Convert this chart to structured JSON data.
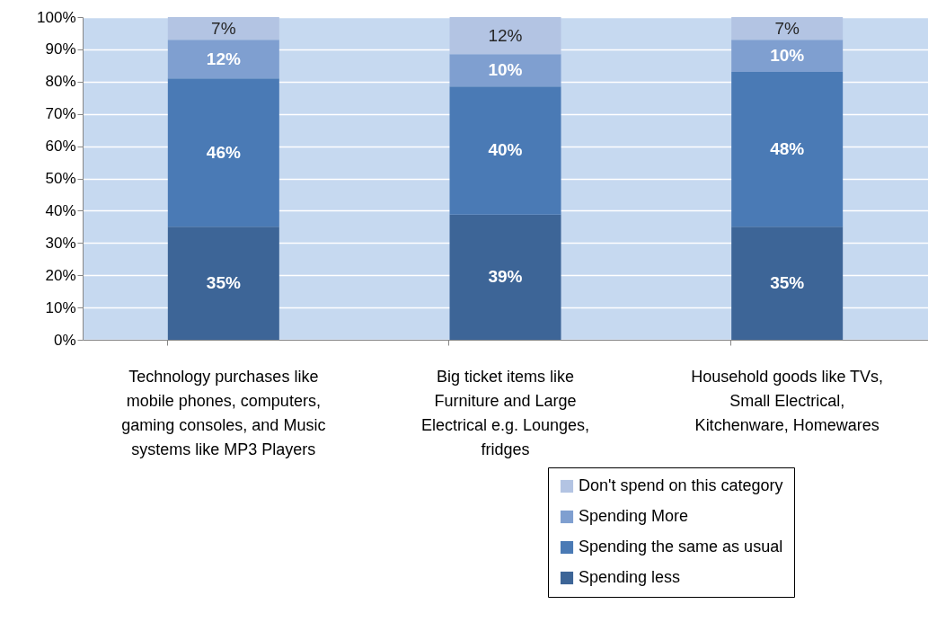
{
  "chart_data": {
    "type": "bar",
    "stacked": true,
    "categories": [
      "Technology purchases like mobile phones, computers, gaming consoles, and Music systems like MP3 Players",
      "Big ticket items like Furniture and Large Electrical e.g. Lounges, fridges",
      "Household goods like TVs, Small Electrical, Kitchenware, Homewares"
    ],
    "series": [
      {
        "name": "Spending less",
        "color": "#3d6597",
        "values": [
          35,
          38.8,
          35
        ],
        "value_labels": [
          "35%",
          "39%",
          "35%"
        ]
      },
      {
        "name": "Spending the same as usual",
        "color": "#4a7ab5",
        "values": [
          46,
          39.7,
          48
        ],
        "value_labels": [
          "46%",
          "40%",
          "48%"
        ]
      },
      {
        "name": "Spending More",
        "color": "#7f9fd0",
        "values": [
          12,
          10,
          10
        ],
        "value_labels": [
          "12%",
          "10%",
          "10%"
        ]
      },
      {
        "name": "Don't spend on this category",
        "color": "#b3c4e3",
        "values": [
          7,
          11.5,
          7
        ],
        "value_labels": [
          "7%",
          "12%",
          "7%"
        ]
      }
    ],
    "ylim": [
      0,
      100
    ],
    "yticks": [
      {
        "value": 0,
        "label": "0%"
      },
      {
        "value": 10,
        "label": "10%"
      },
      {
        "value": 20,
        "label": "20%"
      },
      {
        "value": 30,
        "label": "30%"
      },
      {
        "value": 40,
        "label": "40%"
      },
      {
        "value": 50,
        "label": "50%"
      },
      {
        "value": 60,
        "label": "60%"
      },
      {
        "value": 70,
        "label": "70%"
      },
      {
        "value": 80,
        "label": "80%"
      },
      {
        "value": 90,
        "label": "90%"
      },
      {
        "value": 100,
        "label": "100%"
      }
    ],
    "grid": "y",
    "legend": "bottom right"
  }
}
